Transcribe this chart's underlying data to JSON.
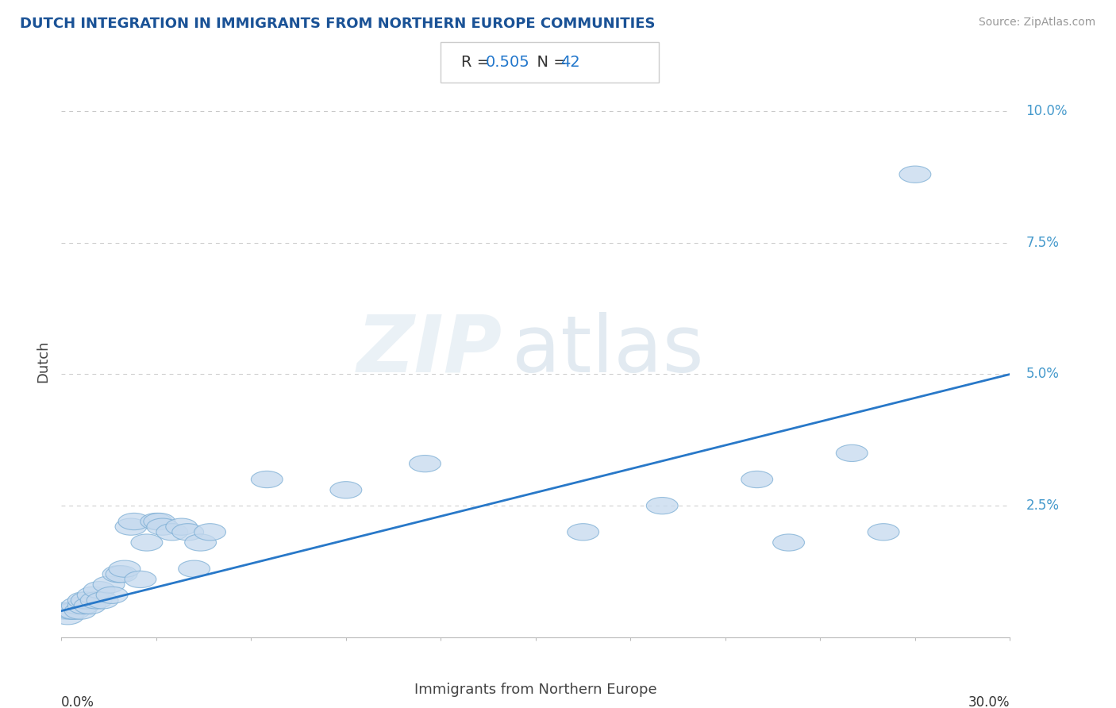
{
  "title": "DUTCH INTEGRATION IN IMMIGRANTS FROM NORTHERN EUROPE COMMUNITIES",
  "source": "Source: ZipAtlas.com",
  "xlabel": "Immigrants from Northern Europe",
  "ylabel": "Dutch",
  "R": 0.505,
  "N": 42,
  "xlim": [
    0.0,
    0.3
  ],
  "ylim": [
    0.0,
    0.105
  ],
  "background_color": "#ffffff",
  "scatter_facecolor": "#c5d9ee",
  "scatter_edgecolor": "#7aadd4",
  "line_color": "#2878c8",
  "grid_color": "#c8c8c8",
  "title_color": "#1a5296",
  "points": [
    [
      0.001,
      0.005
    ],
    [
      0.002,
      0.004
    ],
    [
      0.003,
      0.005
    ],
    [
      0.004,
      0.005
    ],
    [
      0.005,
      0.006
    ],
    [
      0.006,
      0.005
    ],
    [
      0.007,
      0.006
    ],
    [
      0.007,
      0.007
    ],
    [
      0.008,
      0.007
    ],
    [
      0.009,
      0.006
    ],
    [
      0.01,
      0.008
    ],
    [
      0.011,
      0.007
    ],
    [
      0.012,
      0.009
    ],
    [
      0.013,
      0.007
    ],
    [
      0.015,
      0.01
    ],
    [
      0.016,
      0.008
    ],
    [
      0.018,
      0.012
    ],
    [
      0.019,
      0.012
    ],
    [
      0.02,
      0.013
    ],
    [
      0.022,
      0.021
    ],
    [
      0.023,
      0.022
    ],
    [
      0.025,
      0.011
    ],
    [
      0.027,
      0.018
    ],
    [
      0.03,
      0.022
    ],
    [
      0.031,
      0.022
    ],
    [
      0.032,
      0.021
    ],
    [
      0.035,
      0.02
    ],
    [
      0.038,
      0.021
    ],
    [
      0.04,
      0.02
    ],
    [
      0.042,
      0.013
    ],
    [
      0.044,
      0.018
    ],
    [
      0.047,
      0.02
    ],
    [
      0.065,
      0.03
    ],
    [
      0.09,
      0.028
    ],
    [
      0.115,
      0.033
    ],
    [
      0.165,
      0.02
    ],
    [
      0.19,
      0.025
    ],
    [
      0.22,
      0.03
    ],
    [
      0.23,
      0.018
    ],
    [
      0.25,
      0.035
    ],
    [
      0.26,
      0.02
    ],
    [
      0.27,
      0.088
    ]
  ]
}
